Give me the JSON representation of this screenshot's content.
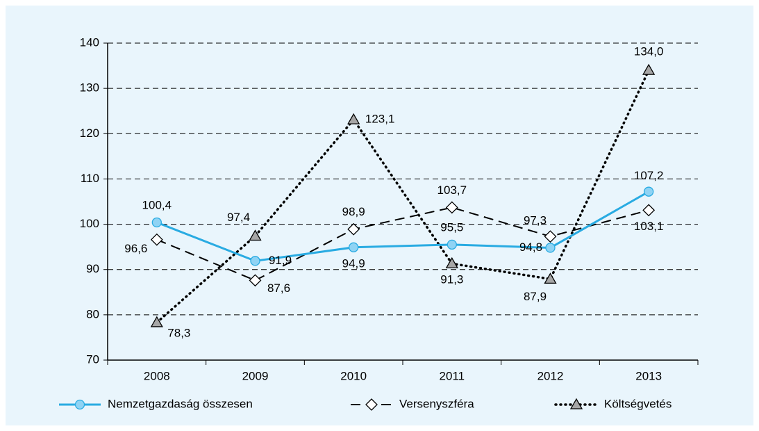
{
  "chart_data": {
    "type": "line",
    "categories": [
      "2008",
      "2009",
      "2010",
      "2011",
      "2012",
      "2013"
    ],
    "series": [
      {
        "name": "Nemzetgazdaság összesen",
        "color": "#29abe2",
        "marker": "circle",
        "style": "solid",
        "values": [
          100.4,
          91.9,
          94.9,
          95.5,
          94.8,
          107.2
        ],
        "value_labels": [
          "100,4",
          "91,9",
          "94,9",
          "95,5",
          "94,8",
          "107,2"
        ]
      },
      {
        "name": "Versenyszféra",
        "color": "#000000",
        "marker": "diamond",
        "style": "dashed",
        "values": [
          96.6,
          87.6,
          98.9,
          103.7,
          97.3,
          103.1
        ],
        "value_labels": [
          "96,6",
          "87,6",
          "98,9",
          "103,7",
          "97,3",
          "103,1"
        ]
      },
      {
        "name": "Költségvetés",
        "color": "#000000",
        "marker": "triangle",
        "style": "dotted",
        "values": [
          78.3,
          97.4,
          123.1,
          91.3,
          87.9,
          134.0
        ],
        "value_labels": [
          "78,3",
          "97,4",
          "123,1",
          "91,3",
          "87,9",
          "134,0"
        ]
      }
    ],
    "ylim": [
      70,
      140
    ],
    "yticks": [
      70,
      80,
      90,
      100,
      110,
      120,
      130,
      140
    ],
    "grid": true,
    "legend": "bottom"
  }
}
